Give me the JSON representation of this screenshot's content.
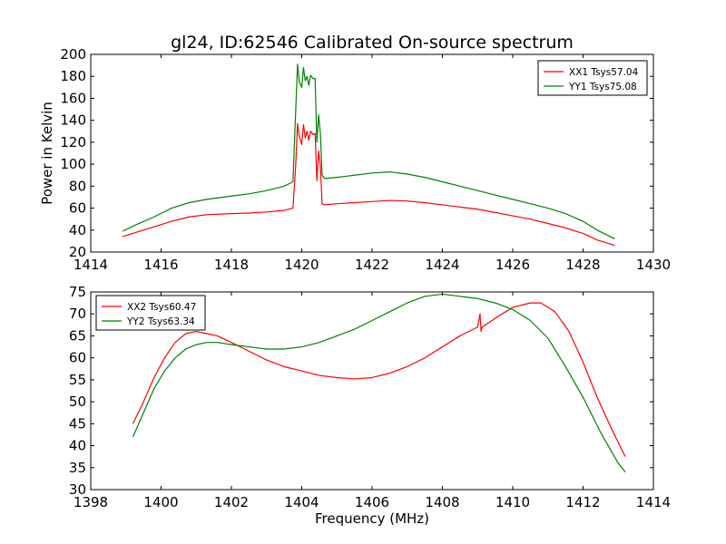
{
  "title": "gl24, ID:62546 Calibrated On-source spectrum",
  "chart_data": [
    {
      "type": "line",
      "title": "gl24, ID:62546 Calibrated On-source spectrum",
      "xlabel": "",
      "ylabel": "Power in Kelvin",
      "xlim": [
        1414,
        1430
      ],
      "ylim": [
        20,
        200
      ],
      "xticks": [
        1414,
        1416,
        1418,
        1420,
        1422,
        1424,
        1426,
        1428,
        1430
      ],
      "yticks": [
        20,
        40,
        60,
        80,
        100,
        120,
        140,
        160,
        180,
        200
      ],
      "grid": false,
      "legend_position": "top-right",
      "series": [
        {
          "name": "XX1 Tsys57.04",
          "color": "#ff0000",
          "x": [
            1414.9,
            1415.3,
            1415.8,
            1416.3,
            1416.8,
            1417.3,
            1418,
            1418.5,
            1419,
            1419.5,
            1419.75,
            1419.83,
            1419.88,
            1419.93,
            1420.0,
            1420.05,
            1420.1,
            1420.15,
            1420.2,
            1420.25,
            1420.32,
            1420.38,
            1420.43,
            1420.48,
            1420.53,
            1420.58,
            1420.65,
            1421,
            1421.5,
            1422,
            1422.5,
            1423,
            1423.5,
            1424,
            1424.5,
            1425,
            1425.5,
            1426,
            1426.5,
            1427,
            1427.5,
            1428,
            1428.4,
            1428.9
          ],
          "values": [
            34,
            38,
            43,
            48,
            52,
            54,
            55,
            55.5,
            56.5,
            58,
            60,
            100,
            137,
            125,
            118,
            136,
            124,
            130,
            122,
            130,
            127,
            128,
            85,
            112,
            98,
            64,
            63,
            64,
            65,
            66,
            67,
            66.5,
            65,
            63,
            61,
            59,
            56,
            53,
            50,
            46,
            42,
            37,
            31,
            26
          ]
        },
        {
          "name": "YY1 Tsys75.08",
          "color": "#008000",
          "x": [
            1414.9,
            1415.3,
            1415.8,
            1416.3,
            1416.8,
            1417.3,
            1418,
            1418.5,
            1419,
            1419.5,
            1419.75,
            1419.83,
            1419.88,
            1419.93,
            1420.0,
            1420.05,
            1420.1,
            1420.15,
            1420.2,
            1420.25,
            1420.32,
            1420.38,
            1420.43,
            1420.48,
            1420.53,
            1420.58,
            1420.65,
            1421,
            1421.5,
            1422,
            1422.5,
            1423,
            1423.5,
            1424,
            1424.5,
            1425,
            1425.5,
            1426,
            1426.5,
            1427,
            1427.5,
            1428,
            1428.4,
            1428.9
          ],
          "values": [
            39,
            45,
            52,
            60,
            65,
            68,
            71,
            73,
            76,
            80,
            84,
            150,
            191,
            175,
            170,
            188,
            176,
            180,
            172,
            181,
            178,
            178,
            120,
            145,
            128,
            90,
            87,
            88,
            90,
            92,
            93,
            91,
            88,
            84,
            80,
            76,
            72,
            68,
            64,
            60,
            55,
            48,
            40,
            32
          ]
        }
      ]
    },
    {
      "type": "line",
      "title": "",
      "xlabel": "Frequency (MHz)",
      "ylabel": "",
      "xlim": [
        1398,
        1414
      ],
      "ylim": [
        30,
        75
      ],
      "xticks": [
        1398,
        1400,
        1402,
        1404,
        1406,
        1408,
        1410,
        1412,
        1414
      ],
      "yticks": [
        30,
        35,
        40,
        45,
        50,
        55,
        60,
        65,
        70,
        75
      ],
      "grid": false,
      "legend_position": "top-left",
      "series": [
        {
          "name": "XX2 Tsys60.47",
          "color": "#ff0000",
          "x": [
            1399.2,
            1399.5,
            1399.8,
            1400.1,
            1400.4,
            1400.7,
            1401,
            1401.3,
            1401.6,
            1402,
            1402.5,
            1403,
            1403.5,
            1404,
            1404.5,
            1405,
            1405.5,
            1406,
            1406.5,
            1407,
            1407.5,
            1408,
            1408.5,
            1409,
            1409.07,
            1409.1,
            1409.13,
            1409.5,
            1410,
            1410.5,
            1410.8,
            1411.2,
            1411.6,
            1412,
            1412.4,
            1412.8,
            1413.2
          ],
          "values": [
            45,
            50,
            55.5,
            60,
            63.5,
            65.5,
            66,
            65.5,
            65,
            63.5,
            61.5,
            59.5,
            58,
            57,
            56,
            55.5,
            55.2,
            55.5,
            56.5,
            58,
            60,
            62.5,
            65,
            67,
            70,
            66,
            67,
            69,
            71.5,
            72.5,
            72.5,
            70.5,
            66,
            59,
            51,
            44,
            37.5
          ]
        },
        {
          "name": "YY2 Tsys63.34",
          "color": "#008000",
          "x": [
            1399.2,
            1399.5,
            1399.8,
            1400.1,
            1400.4,
            1400.7,
            1401,
            1401.3,
            1401.6,
            1402,
            1402.5,
            1403,
            1403.5,
            1404,
            1404.5,
            1405,
            1405.5,
            1406,
            1406.5,
            1407,
            1407.5,
            1408,
            1408.5,
            1409,
            1409.5,
            1410,
            1410.5,
            1411,
            1411.5,
            1412,
            1412.5,
            1413,
            1413.2
          ],
          "values": [
            42,
            47.5,
            53,
            57,
            60,
            62,
            63,
            63.5,
            63.5,
            63,
            62.5,
            62,
            62,
            62.5,
            63.5,
            65,
            66.5,
            68.5,
            70.5,
            72.5,
            74,
            74.5,
            74,
            73.5,
            72.5,
            71,
            68.5,
            64.5,
            58,
            51,
            43,
            36,
            34
          ]
        }
      ]
    }
  ]
}
